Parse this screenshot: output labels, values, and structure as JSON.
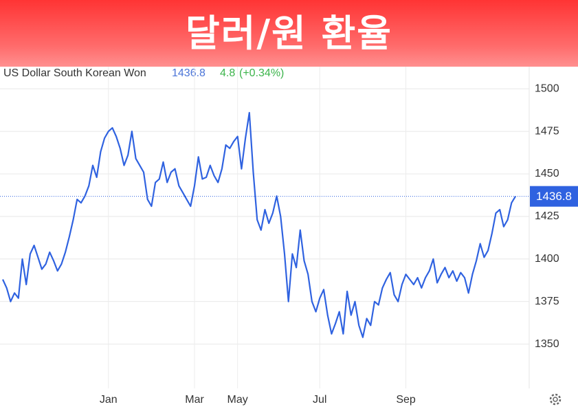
{
  "chart_data": {
    "type": "line",
    "title": "달러/원 환율",
    "header_value": 1436.8,
    "change": "4.8",
    "change_pct": "(+0.34%)",
    "categories": [
      null,
      null,
      null,
      null,
      null,
      null,
      null,
      null,
      null,
      null,
      null,
      null,
      null,
      null,
      null,
      null,
      null,
      null,
      null,
      null,
      null,
      null,
      null,
      null,
      null,
      null,
      null,
      "Jan",
      null,
      null,
      null,
      null,
      null,
      null,
      null,
      null,
      null,
      null,
      null,
      null,
      null,
      null,
      null,
      null,
      null,
      null,
      null,
      null,
      null,
      "Mar",
      null,
      null,
      null,
      null,
      null,
      null,
      null,
      null,
      null,
      null,
      "May",
      null,
      null,
      null,
      null,
      null,
      null,
      null,
      null,
      null,
      null,
      null,
      null,
      null,
      null,
      null,
      null,
      null,
      null,
      null,
      null,
      "Jul",
      null,
      null,
      null,
      null,
      null,
      null,
      null,
      null,
      null,
      null,
      null,
      null,
      null,
      null,
      null,
      null,
      null,
      null,
      null,
      null,
      null,
      "Sep",
      null,
      null,
      null,
      null,
      null,
      null,
      null,
      null,
      null,
      null,
      null,
      null,
      null,
      null,
      null,
      null,
      null,
      null,
      null,
      null,
      null,
      null,
      null,
      null,
      null,
      null,
      null,
      null
    ],
    "series": [
      {
        "name": "US Dollar South Korean Won",
        "color": "#2f62e0",
        "values": [
          1388,
          1383,
          1375,
          1380,
          1377,
          1400,
          1385,
          1403,
          1408,
          1401,
          1394,
          1397,
          1404,
          1399,
          1393,
          1397,
          1404,
          1413,
          1423,
          1435,
          1433,
          1437,
          1443,
          1455,
          1448,
          1463,
          1471,
          1475,
          1477,
          1472,
          1465,
          1455,
          1461,
          1475,
          1459,
          1455,
          1451,
          1435,
          1431,
          1445,
          1447,
          1457,
          1445,
          1451,
          1453,
          1443,
          1439,
          1435,
          1431,
          1443,
          1460,
          1447,
          1448,
          1455,
          1449,
          1445,
          1453,
          1467,
          1465,
          1469,
          1472,
          1453,
          1471,
          1486,
          1451,
          1423,
          1417,
          1429,
          1421,
          1427,
          1437,
          1425,
          1403,
          1375,
          1403,
          1395,
          1417,
          1399,
          1391,
          1375,
          1369,
          1377,
          1382,
          1367,
          1356,
          1362,
          1369,
          1356,
          1381,
          1367,
          1375,
          1361,
          1354,
          1365,
          1361,
          1375,
          1373,
          1383,
          1388,
          1392,
          1379,
          1375,
          1385,
          1391,
          1388,
          1385,
          1389,
          1383,
          1389,
          1393,
          1400,
          1386,
          1391,
          1395,
          1389,
          1393,
          1387,
          1392,
          1389,
          1380,
          1391,
          1399,
          1409,
          1401,
          1405,
          1415,
          1427,
          1429,
          1419,
          1423,
          1433,
          1436.8
        ]
      }
    ],
    "ylim": [
      1326,
      1513
    ],
    "yticks": [
      1350,
      1375,
      1400,
      1425,
      1450,
      1475,
      1500
    ],
    "grid": true
  }
}
